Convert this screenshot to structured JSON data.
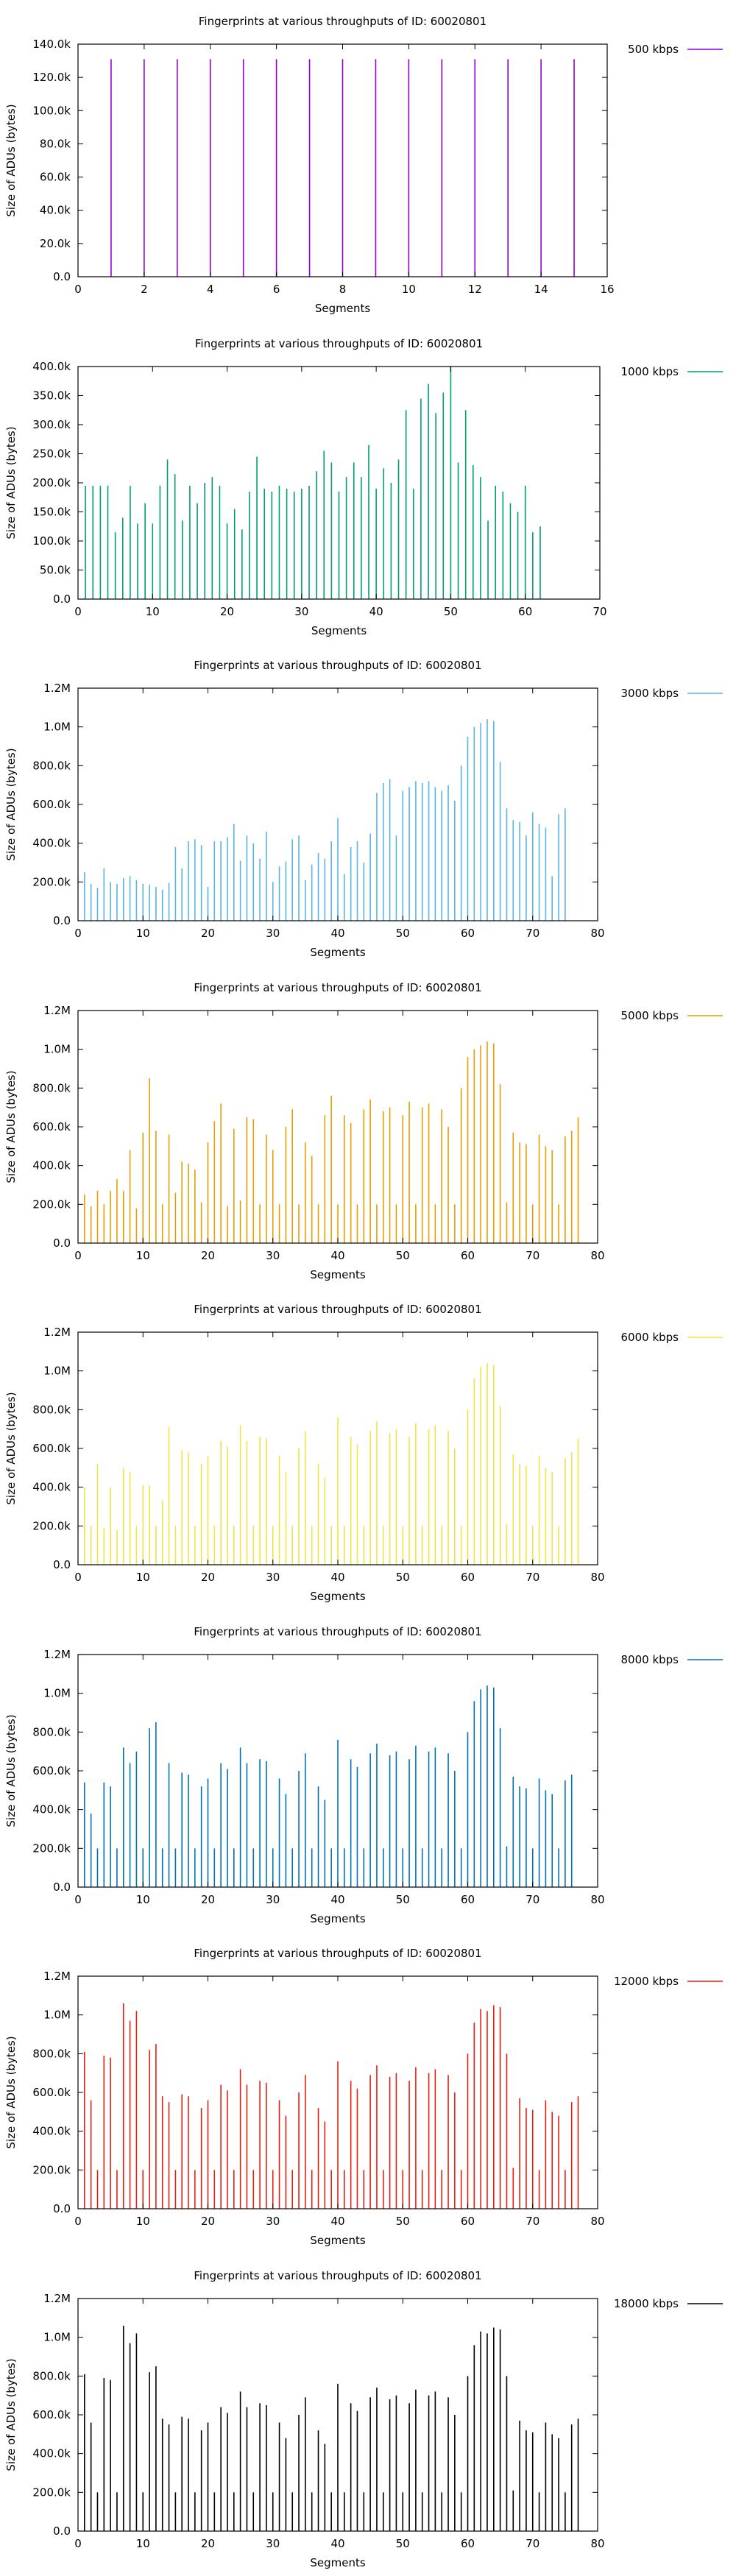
{
  "chart_data": [
    {
      "type": "bar",
      "title": "Fingerprints at various throughputs of ID: 60020801",
      "xlabel": "Segments",
      "ylabel": "Size of ADUs (bytes)",
      "legend": "500 kbps",
      "legend_position": "top-right outside",
      "color": "#9400d3",
      "xlim": [
        0,
        16
      ],
      "xticks": [
        0,
        2,
        4,
        6,
        8,
        10,
        12,
        14,
        16
      ],
      "ylim": [
        0,
        140000
      ],
      "yticks": [
        0,
        20000,
        40000,
        60000,
        80000,
        100000,
        120000,
        140000
      ],
      "ytick_labels": [
        "0.0",
        "20.0k",
        "40.0k",
        "60.0k",
        "80.0k",
        "100.0k",
        "120.0k",
        "140.0k"
      ],
      "x": [
        1,
        2,
        3,
        4,
        5,
        6,
        7,
        8,
        9,
        10,
        11,
        12,
        13,
        14,
        15
      ],
      "values": [
        131000,
        131000,
        131000,
        131000,
        131000,
        131000,
        131000,
        131000,
        131000,
        131000,
        131000,
        131000,
        131000,
        131000,
        131000
      ]
    },
    {
      "type": "bar",
      "title": "Fingerprints at various throughputs of ID: 60020801",
      "xlabel": "Segments",
      "ylabel": "Size of ADUs (bytes)",
      "legend": "1000 kbps",
      "legend_position": "top-right outside",
      "color": "#009e73",
      "xlim": [
        0,
        70
      ],
      "xticks": [
        0,
        10,
        20,
        30,
        40,
        50,
        60,
        70
      ],
      "ylim": [
        0,
        400000
      ],
      "yticks": [
        0,
        50000,
        100000,
        150000,
        200000,
        250000,
        300000,
        350000,
        400000
      ],
      "ytick_labels": [
        "0.0",
        "50.0k",
        "100.0k",
        "150.0k",
        "200.0k",
        "250.0k",
        "300.0k",
        "350.0k",
        "400.0k"
      ],
      "x_start": 1,
      "values": [
        195000,
        195000,
        195000,
        195000,
        115000,
        140000,
        195000,
        130000,
        165000,
        130000,
        195000,
        240000,
        215000,
        135000,
        195000,
        165000,
        200000,
        210000,
        195000,
        130000,
        155000,
        120000,
        185000,
        245000,
        190000,
        185000,
        195000,
        190000,
        185000,
        190000,
        195000,
        220000,
        255000,
        235000,
        185000,
        210000,
        235000,
        210000,
        265000,
        190000,
        225000,
        200000,
        240000,
        325000,
        190000,
        345000,
        370000,
        320000,
        355000,
        400000,
        235000,
        325000,
        230000,
        210000,
        135000,
        195000,
        185000,
        165000,
        150000,
        195000,
        115000,
        125000
      ]
    },
    {
      "type": "bar",
      "title": "Fingerprints at various throughputs of ID: 60020801",
      "xlabel": "Segments",
      "ylabel": "Size of ADUs (bytes)",
      "legend": "3000 kbps",
      "legend_position": "top-right outside",
      "color": "#56b4e9",
      "xlim": [
        0,
        80
      ],
      "xticks": [
        0,
        10,
        20,
        30,
        40,
        50,
        60,
        70,
        80
      ],
      "ylim": [
        0,
        1200000
      ],
      "yticks": [
        0,
        200000,
        400000,
        600000,
        800000,
        1000000,
        1200000
      ],
      "ytick_labels": [
        "0.0",
        "200.0k",
        "400.0k",
        "600.0k",
        "800.0k",
        "1.0M",
        "1.2M"
      ],
      "x_start": 1,
      "values": [
        250000,
        190000,
        170000,
        270000,
        200000,
        190000,
        220000,
        230000,
        210000,
        190000,
        185000,
        175000,
        160000,
        195000,
        380000,
        270000,
        410000,
        420000,
        390000,
        175000,
        410000,
        410000,
        430000,
        500000,
        310000,
        440000,
        400000,
        320000,
        460000,
        200000,
        280000,
        305000,
        420000,
        440000,
        210000,
        290000,
        350000,
        320000,
        410000,
        530000,
        240000,
        380000,
        410000,
        300000,
        450000,
        660000,
        710000,
        730000,
        440000,
        670000,
        690000,
        720000,
        710000,
        720000,
        690000,
        670000,
        700000,
        620000,
        800000,
        950000,
        1000000,
        1020000,
        1040000,
        1030000,
        820000,
        580000,
        520000,
        510000,
        440000,
        560000,
        500000,
        480000,
        230000,
        550000,
        580000
      ]
    },
    {
      "type": "bar",
      "title": "Fingerprints at various throughputs of ID: 60020801",
      "xlabel": "Segments",
      "ylabel": "Size of ADUs (bytes)",
      "legend": "5000 kbps",
      "legend_position": "top-right outside",
      "color": "#e69f00",
      "xlim": [
        0,
        80
      ],
      "xticks": [
        0,
        10,
        20,
        30,
        40,
        50,
        60,
        70,
        80
      ],
      "ylim": [
        0,
        1200000
      ],
      "yticks": [
        0,
        200000,
        400000,
        600000,
        800000,
        1000000,
        1200000
      ],
      "ytick_labels": [
        "0.0",
        "200.0k",
        "400.0k",
        "600.0k",
        "800.0k",
        "1.0M",
        "1.2M"
      ],
      "x_start": 1,
      "values": [
        250000,
        190000,
        270000,
        200000,
        270000,
        330000,
        270000,
        480000,
        180000,
        570000,
        850000,
        580000,
        200000,
        560000,
        260000,
        420000,
        410000,
        380000,
        210000,
        520000,
        630000,
        720000,
        190000,
        590000,
        220000,
        650000,
        640000,
        200000,
        560000,
        480000,
        200000,
        600000,
        690000,
        200000,
        520000,
        450000,
        200000,
        660000,
        760000,
        200000,
        660000,
        620000,
        200000,
        690000,
        740000,
        200000,
        680000,
        700000,
        200000,
        660000,
        730000,
        200000,
        700000,
        720000,
        200000,
        690000,
        600000,
        200000,
        800000,
        960000,
        1000000,
        1020000,
        1040000,
        1030000,
        820000,
        210000,
        570000,
        520000,
        510000,
        200000,
        560000,
        500000,
        480000,
        200000,
        550000,
        580000,
        650000
      ]
    },
    {
      "type": "bar",
      "title": "Fingerprints at various throughputs of ID: 60020801",
      "xlabel": "Segments",
      "ylabel": "Size of ADUs (bytes)",
      "legend": "6000 kbps",
      "legend_position": "top-right outside",
      "color": "#f0e442",
      "xlim": [
        0,
        80
      ],
      "xticks": [
        0,
        10,
        20,
        30,
        40,
        50,
        60,
        70,
        80
      ],
      "ylim": [
        0,
        1200000
      ],
      "yticks": [
        0,
        200000,
        400000,
        600000,
        800000,
        1000000,
        1200000
      ],
      "ytick_labels": [
        "0.0",
        "200.0k",
        "400.0k",
        "600.0k",
        "800.0k",
        "1.0M",
        "1.2M"
      ],
      "x_start": 1,
      "values": [
        400000,
        200000,
        520000,
        190000,
        400000,
        180000,
        500000,
        480000,
        200000,
        410000,
        410000,
        200000,
        330000,
        710000,
        200000,
        590000,
        580000,
        200000,
        520000,
        560000,
        200000,
        640000,
        610000,
        200000,
        720000,
        640000,
        200000,
        660000,
        650000,
        200000,
        560000,
        480000,
        200000,
        600000,
        690000,
        200000,
        520000,
        450000,
        200000,
        760000,
        200000,
        660000,
        620000,
        200000,
        690000,
        740000,
        200000,
        680000,
        700000,
        200000,
        660000,
        730000,
        200000,
        700000,
        720000,
        200000,
        690000,
        600000,
        200000,
        800000,
        960000,
        1020000,
        1040000,
        1030000,
        820000,
        210000,
        570000,
        520000,
        510000,
        200000,
        560000,
        500000,
        480000,
        200000,
        550000,
        580000,
        650000
      ]
    },
    {
      "type": "bar",
      "title": "Fingerprints at various throughputs of ID: 60020801",
      "xlabel": "Segments",
      "ylabel": "Size of ADUs (bytes)",
      "legend": "8000 kbps",
      "legend_position": "top-right outside",
      "color": "#0072b2",
      "xlim": [
        0,
        80
      ],
      "xticks": [
        0,
        10,
        20,
        30,
        40,
        50,
        60,
        70,
        80
      ],
      "ylim": [
        0,
        1200000
      ],
      "yticks": [
        0,
        200000,
        400000,
        600000,
        800000,
        1000000,
        1200000
      ],
      "ytick_labels": [
        "0.0",
        "200.0k",
        "400.0k",
        "600.0k",
        "800.0k",
        "1.0M",
        "1.2M"
      ],
      "x_start": 1,
      "values": [
        540000,
        380000,
        200000,
        540000,
        520000,
        200000,
        720000,
        640000,
        700000,
        200000,
        820000,
        850000,
        200000,
        640000,
        200000,
        590000,
        580000,
        200000,
        520000,
        560000,
        200000,
        640000,
        610000,
        200000,
        720000,
        640000,
        200000,
        660000,
        650000,
        200000,
        560000,
        480000,
        200000,
        600000,
        690000,
        200000,
        520000,
        450000,
        200000,
        760000,
        200000,
        660000,
        620000,
        200000,
        690000,
        740000,
        200000,
        680000,
        700000,
        200000,
        660000,
        730000,
        200000,
        700000,
        720000,
        200000,
        690000,
        600000,
        200000,
        800000,
        960000,
        1020000,
        1040000,
        1030000,
        820000,
        210000,
        570000,
        520000,
        510000,
        200000,
        560000,
        500000,
        480000,
        200000,
        550000,
        580000
      ]
    },
    {
      "type": "bar",
      "title": "Fingerprints at various throughputs of ID: 60020801",
      "xlabel": "Segments",
      "ylabel": "Size of ADUs (bytes)",
      "legend": "12000 kbps",
      "legend_position": "top-right outside",
      "color": "#e51e10",
      "xlim": [
        0,
        80
      ],
      "xticks": [
        0,
        10,
        20,
        30,
        40,
        50,
        60,
        70,
        80
      ],
      "ylim": [
        0,
        1200000
      ],
      "yticks": [
        0,
        200000,
        400000,
        600000,
        800000,
        1000000,
        1200000
      ],
      "ytick_labels": [
        "0.0",
        "200.0k",
        "400.0k",
        "600.0k",
        "800.0k",
        "1.0M",
        "1.2M"
      ],
      "x_start": 1,
      "values": [
        810000,
        560000,
        200000,
        790000,
        780000,
        200000,
        1060000,
        970000,
        1020000,
        200000,
        820000,
        850000,
        580000,
        550000,
        200000,
        590000,
        580000,
        200000,
        520000,
        560000,
        200000,
        640000,
        610000,
        200000,
        720000,
        640000,
        200000,
        660000,
        650000,
        200000,
        560000,
        480000,
        200000,
        600000,
        690000,
        200000,
        520000,
        450000,
        200000,
        760000,
        200000,
        660000,
        620000,
        200000,
        690000,
        740000,
        200000,
        680000,
        700000,
        200000,
        660000,
        730000,
        200000,
        700000,
        720000,
        200000,
        690000,
        600000,
        200000,
        800000,
        960000,
        1030000,
        1020000,
        1050000,
        1040000,
        800000,
        210000,
        570000,
        520000,
        510000,
        200000,
        560000,
        500000,
        480000,
        200000,
        550000,
        580000
      ]
    },
    {
      "type": "bar",
      "title": "Fingerprints at various throughputs of ID: 60020801",
      "xlabel": "Segments",
      "ylabel": "Size of ADUs (bytes)",
      "legend": "18000 kbps",
      "legend_position": "top-right outside",
      "color": "#000000",
      "xlim": [
        0,
        80
      ],
      "xticks": [
        0,
        10,
        20,
        30,
        40,
        50,
        60,
        70,
        80
      ],
      "ylim": [
        0,
        1200000
      ],
      "yticks": [
        0,
        200000,
        400000,
        600000,
        800000,
        1000000,
        1200000
      ],
      "ytick_labels": [
        "0.0",
        "200.0k",
        "400.0k",
        "600.0k",
        "800.0k",
        "1.0M",
        "1.2M"
      ],
      "x_start": 1,
      "values": [
        810000,
        560000,
        200000,
        790000,
        780000,
        200000,
        1060000,
        970000,
        1020000,
        200000,
        820000,
        850000,
        580000,
        550000,
        200000,
        590000,
        580000,
        200000,
        520000,
        560000,
        200000,
        640000,
        610000,
        200000,
        720000,
        640000,
        200000,
        660000,
        650000,
        200000,
        560000,
        480000,
        200000,
        600000,
        690000,
        200000,
        520000,
        450000,
        200000,
        760000,
        200000,
        660000,
        620000,
        200000,
        690000,
        740000,
        200000,
        680000,
        700000,
        200000,
        660000,
        730000,
        200000,
        700000,
        720000,
        200000,
        690000,
        600000,
        200000,
        800000,
        960000,
        1030000,
        1020000,
        1050000,
        1040000,
        800000,
        210000,
        570000,
        520000,
        510000,
        200000,
        560000,
        500000,
        480000,
        200000,
        550000,
        580000
      ]
    }
  ]
}
